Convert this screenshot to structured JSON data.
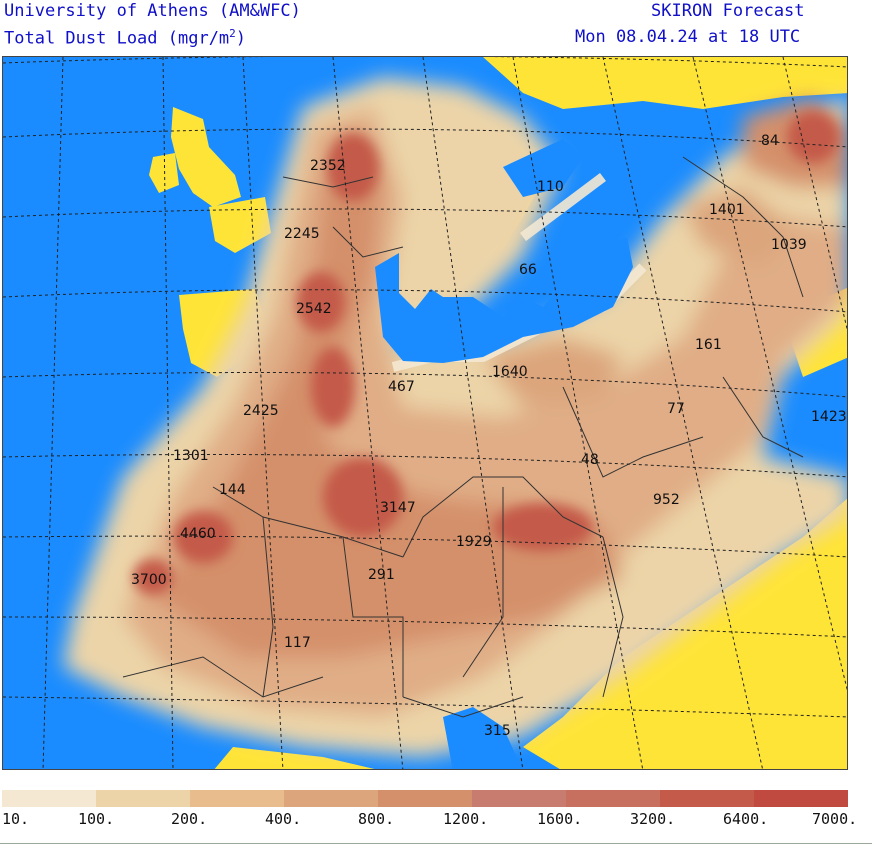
{
  "header": {
    "institution": "University of Athens (AM&WFC)",
    "product": "SKIRON Forecast",
    "field_prefix": "Total Dust Load (mgr/m",
    "field_exp": "2",
    "field_suffix": ")",
    "valid_time": "Mon 08.04.24 at 18 UTC"
  },
  "colors": {
    "sea": "#1a8cff",
    "clean_land": "#ffe438",
    "border_lines": "#333333",
    "grid_lines": "#222222",
    "header_text": "#1010c8"
  },
  "map": {
    "labels": [
      {
        "text": "2352"
      },
      {
        "text": "2245"
      },
      {
        "text": "2542"
      },
      {
        "text": "2425"
      },
      {
        "text": "1301"
      },
      {
        "text": "144"
      },
      {
        "text": "4460"
      },
      {
        "text": "3700"
      },
      {
        "text": "117"
      },
      {
        "text": "291"
      },
      {
        "text": "3147"
      },
      {
        "text": "1929"
      },
      {
        "text": "467"
      },
      {
        "text": "1640"
      },
      {
        "text": "66"
      },
      {
        "text": "110"
      },
      {
        "text": "84"
      },
      {
        "text": "1401"
      },
      {
        "text": "1039"
      },
      {
        "text": "161"
      },
      {
        "text": "77"
      },
      {
        "text": "48"
      },
      {
        "text": "952"
      },
      {
        "text": "1423"
      },
      {
        "text": "315"
      }
    ]
  },
  "legend": {
    "colors": [
      "#f4e8d2",
      "#ecd4a8",
      "#e8bc8c",
      "#dca57c",
      "#d4906a",
      "#c87c70",
      "#c87060",
      "#c45a4a",
      "#c14a40"
    ],
    "labels": [
      "10.",
      "100.",
      "200.",
      "400.",
      "800.",
      "1200.",
      "1600.",
      "3200.",
      "6400.",
      "7000."
    ]
  }
}
